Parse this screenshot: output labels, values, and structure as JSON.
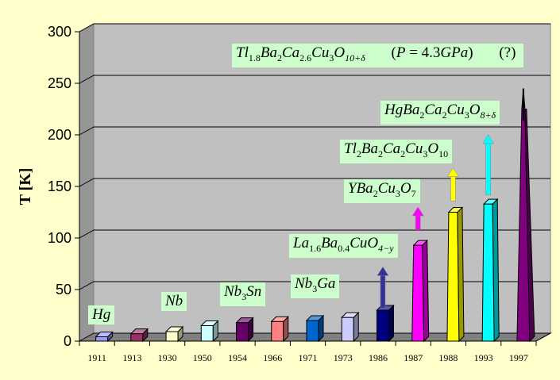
{
  "chart_data": {
    "type": "bar",
    "categories": [
      "1911",
      "1913",
      "1930",
      "1950",
      "1954",
      "1966",
      "1971",
      "1973",
      "1986",
      "1987",
      "1988",
      "1993",
      "1997"
    ],
    "values": [
      4.2,
      7.2,
      9.2,
      15.0,
      18.0,
      19.0,
      20.0,
      23.0,
      30.0,
      93.0,
      125.0,
      133.0,
      225.0
    ],
    "colors": [
      "#9999ff",
      "#993366",
      "#ffffcc",
      "#ccffff",
      "#660066",
      "#ff8080",
      "#0066cc",
      "#ccccff",
      "#000080",
      "#ff00ff",
      "#ffff00",
      "#00ffff",
      "#800080"
    ],
    "spike_1997": 245,
    "arrows": [
      {
        "year": "1986",
        "from": 32,
        "to": 72,
        "color": "#333399"
      },
      {
        "year": "1987",
        "from": 108,
        "to": 130,
        "color": "#ff00ff"
      },
      {
        "year": "1988",
        "from": 136,
        "to": 168,
        "color": "#ffff00"
      },
      {
        "year": "1993",
        "from": 142,
        "to": 200,
        "color": "#00ffff"
      }
    ],
    "ylabel": "T [K]",
    "ylim": [
      0,
      300
    ],
    "yticks": [
      "0",
      "50",
      "100",
      "150",
      "200",
      "250",
      "300"
    ],
    "grid": true
  },
  "labels": {
    "hg": "Hg",
    "nb": "Nb",
    "nb3sn": {
      "a": "Nb",
      "s": "3",
      "b": "Sn"
    },
    "nb3ga": {
      "a": "Nb",
      "s": "3",
      "b": "Ga"
    },
    "la": {
      "a": "La",
      "s1": "1.6",
      "b": "Ba",
      "s2": "0.4",
      "c": "CuO",
      "s3": "4−y"
    },
    "y": {
      "a": "YBa",
      "s1": "2",
      "b": "Cu",
      "s2": "3",
      "c": "O",
      "s3": "7"
    },
    "tl": {
      "a": "Tl",
      "s1": "2",
      "b": "Ba",
      "s2": "2",
      "c": "Ca",
      "s3": "2",
      "d": "Cu",
      "s4": "3",
      "e": "O",
      "s5": "10"
    },
    "hgba": {
      "a": "HgBa",
      "s1": "2",
      "b": "Ca",
      "s2": "2",
      "c": "Cu",
      "s3": "3",
      "d": "O",
      "s4": "8+δ"
    },
    "top": {
      "a": "Tl",
      "s1": "1.8",
      "b": "Ba",
      "s2": "2",
      "c": "Ca",
      "s3": "2.6",
      "d": "Cu",
      "s4": "3",
      "e": "O",
      "s5": "10+δ",
      "p_open": "(",
      "p": "P",
      "eq": " = 4.3",
      "gpa": "GPa",
      "p_close": ")",
      "q": "(?)"
    }
  }
}
